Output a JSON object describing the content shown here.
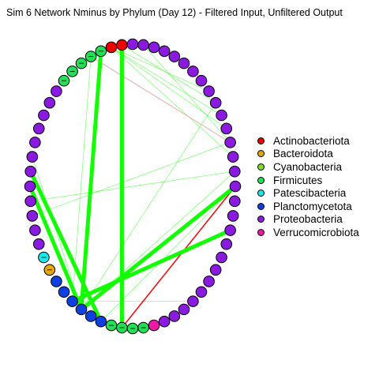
{
  "title": "Sim 6 Network Nminus by Phylum (Day 12) - Filtered Input, Unfiltered Output",
  "legend": [
    {
      "label": "Actinobacteriota",
      "color": "#ee0000"
    },
    {
      "label": "Bacteroidota",
      "color": "#e8a700"
    },
    {
      "label": "Cyanobacteria",
      "color": "#7fe01a"
    },
    {
      "label": "Firmicutes",
      "color": "#22e055"
    },
    {
      "label": "Patescibacteria",
      "color": "#19e8e8"
    },
    {
      "label": "Planctomycetota",
      "color": "#0d40e0"
    },
    {
      "label": "Proteobacteria",
      "color": "#8a1ae0"
    },
    {
      "label": "Verrucomicrobiota",
      "color": "#ee18a8"
    }
  ],
  "edge_colors": {
    "positive": "#11ff00",
    "negative": "#ee1111",
    "weak_negative": "#e5a3a3"
  }
}
